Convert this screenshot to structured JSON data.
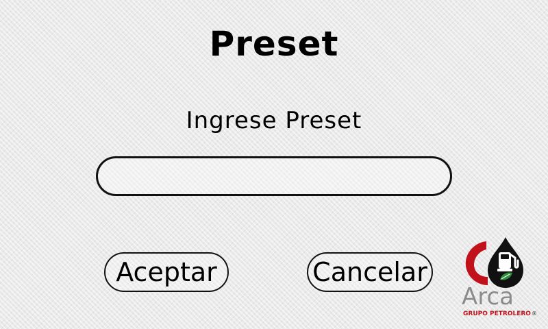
{
  "header": {
    "title": "Preset"
  },
  "form": {
    "prompt": "Ingrese Preset",
    "preset_input_value": ""
  },
  "actions": {
    "accept_label": "Aceptar",
    "cancel_label": "Cancelar"
  },
  "logo": {
    "name": "Arca",
    "subtitle": "GRUPO PETROLERO",
    "registered_mark": "®",
    "icons": [
      "c-ring-icon",
      "fuel-pump-icon",
      "leaf-icon"
    ],
    "colors": {
      "red": "#c1121c",
      "black": "#111111",
      "gray": "#8b8b8b",
      "green": "#2f8f3a"
    }
  },
  "colors": {
    "text": "#000000",
    "border": "#111111",
    "background": "#e9e9e9"
  }
}
